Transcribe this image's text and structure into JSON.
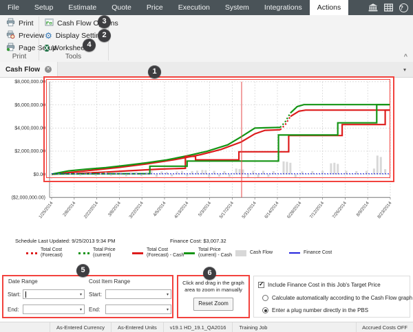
{
  "menubar": {
    "tabs": [
      {
        "label": "File",
        "active": false
      },
      {
        "label": "Setup",
        "active": false
      },
      {
        "label": "Estimate",
        "active": false
      },
      {
        "label": "Quote",
        "active": false
      },
      {
        "label": "Price",
        "active": false
      },
      {
        "label": "Execution",
        "active": false
      },
      {
        "label": "System",
        "active": false
      },
      {
        "label": "Integrations",
        "active": false
      },
      {
        "label": "Actions",
        "active": true
      }
    ],
    "right_icons": [
      "bank-icon",
      "grid-icon",
      "help-icon"
    ]
  },
  "ribbon": {
    "groups": [
      {
        "label": "Print",
        "items": [
          {
            "label": "Print",
            "icon": "printer-icon"
          },
          {
            "label": "Preview",
            "icon": "print-preview-icon"
          },
          {
            "label": "Page Setup",
            "icon": "page-setup-icon"
          }
        ]
      },
      {
        "label": "Tools",
        "items": [
          {
            "label": "Cash Flow Options",
            "icon": "cash-flow-options-icon",
            "callout": "3"
          },
          {
            "label": "Display Settings",
            "icon": "gear-icon",
            "callout": "2"
          },
          {
            "label": "Worksheet",
            "icon": "excel-icon",
            "callout": "4"
          }
        ]
      }
    ],
    "collapse_icon": "chevron-up-icon"
  },
  "view_tab": {
    "label": "Cash Flow"
  },
  "callouts": {
    "c1": "1",
    "c2": "2",
    "c3": "3",
    "c4": "4",
    "c5": "5",
    "c6": "6"
  },
  "info": {
    "schedule_last_updated": "Schedule Last Updated: 9/25/2013 9:34 PM",
    "finance_cost": "Finance Cost: $3,007.32"
  },
  "chart_data": {
    "type": "combo",
    "title": "Cash Flow",
    "y_unit": "millions USD",
    "ylim": [
      -2,
      8
    ],
    "grid": true,
    "y_ticks": [
      {
        "label": "$8,000,000.00",
        "value": 8
      },
      {
        "label": "$6,000,000.00",
        "value": 6
      },
      {
        "label": "$4,000,000.00",
        "value": 4
      },
      {
        "label": "$2,000,000.00",
        "value": 2
      },
      {
        "label": "$0.00",
        "value": 0
      },
      {
        "label": "($2,000,000.00)",
        "value": -2
      }
    ],
    "x_ticks": [
      "1/25/2014",
      "2/8/2014",
      "2/22/2014",
      "3/8/2014",
      "3/22/2014",
      "4/5/2014",
      "4/19/2014",
      "5/3/2014",
      "5/17/2014",
      "5/31/2014",
      "6/14/2014",
      "6/28/2014",
      "7/12/2014",
      "7/26/2014",
      "8/9/2014",
      "8/23/2014"
    ],
    "crosshair_x": 0.561,
    "series": [
      {
        "name": "Total Cost (Forecast)",
        "type": "line",
        "color": "#dd1c1c",
        "width": 2.2,
        "segments": [
          {
            "style": "solid",
            "points": [
              [
                0,
                0
              ],
              [
                0.06,
                0.18
              ],
              [
                0.12,
                0.36
              ],
              [
                0.2,
                0.6
              ],
              [
                0.28,
                0.9
              ],
              [
                0.36,
                1.25
              ],
              [
                0.44,
                1.7
              ],
              [
                0.5,
                2.15
              ],
              [
                0.56,
                2.8
              ],
              [
                0.6,
                3.5
              ],
              [
                0.63,
                3.8
              ],
              [
                0.675,
                3.85
              ]
            ]
          },
          {
            "style": "dotted",
            "points": [
              [
                0.675,
                3.85
              ],
              [
                0.69,
                4.3
              ],
              [
                0.705,
                5.0
              ]
            ]
          },
          {
            "style": "solid",
            "points": [
              [
                0.705,
                5.0
              ],
              [
                0.73,
                5.45
              ],
              [
                0.75,
                5.55
              ],
              [
                1,
                5.55
              ]
            ]
          }
        ]
      },
      {
        "name": "Total Price (current)",
        "type": "line",
        "color": "#149414",
        "width": 2.2,
        "segments": [
          {
            "style": "solid",
            "points": [
              [
                0,
                0.02
              ],
              [
                0.05,
                0.3
              ],
              [
                0.1,
                0.44
              ],
              [
                0.16,
                0.58
              ],
              [
                0.22,
                0.78
              ],
              [
                0.28,
                1.0
              ],
              [
                0.34,
                1.25
              ],
              [
                0.4,
                1.6
              ],
              [
                0.46,
                2.0
              ],
              [
                0.52,
                2.55
              ],
              [
                0.56,
                3.25
              ],
              [
                0.6,
                4.0
              ],
              [
                0.675,
                4.05
              ]
            ]
          },
          {
            "style": "dotted",
            "points": [
              [
                0.675,
                4.05
              ],
              [
                0.69,
                4.55
              ],
              [
                0.705,
                5.3
              ]
            ]
          },
          {
            "style": "solid",
            "points": [
              [
                0.705,
                5.3
              ],
              [
                0.725,
                5.85
              ],
              [
                0.745,
                6.02
              ],
              [
                1,
                6.02
              ]
            ]
          }
        ]
      },
      {
        "name": "Total Cost (Forecast) - Cash",
        "type": "line",
        "color": "#dd1c1c",
        "width": 2.2,
        "segments": [
          {
            "style": "solid",
            "points": [
              [
                0,
                0.02
              ],
              [
                0.08,
                0.08
              ],
              [
                0.16,
                0.2
              ],
              [
                0.24,
                0.33
              ],
              [
                0.32,
                0.45
              ],
              [
                0.395,
                0.52
              ],
              [
                0.395,
                1.55
              ],
              [
                0.425,
                1.55
              ],
              [
                0.425,
                1.25
              ],
              [
                0.553,
                1.25
              ],
              [
                0.553,
                1.95
              ],
              [
                0.7,
                1.95
              ],
              [
                0.7,
                3.35
              ],
              [
                0.858,
                3.35
              ],
              [
                0.858,
                4.3
              ],
              [
                0.985,
                4.3
              ],
              [
                0.985,
                5.55
              ],
              [
                1,
                5.55
              ]
            ]
          }
        ]
      },
      {
        "name": "Total Price (current) - Cash",
        "type": "line",
        "color": "#149414",
        "width": 2.2,
        "segments": [
          {
            "style": "solid",
            "points": [
              [
                0,
                0.03
              ],
              [
                0.29,
                0.06
              ],
              [
                0.29,
                0.7
              ],
              [
                0.4,
                0.7
              ],
              [
                0.4,
                1.15
              ],
              [
                0.67,
                1.15
              ],
              [
                0.67,
                3.4
              ],
              [
                0.845,
                3.4
              ],
              [
                0.845,
                4.45
              ],
              [
                0.96,
                4.45
              ],
              [
                0.96,
                6.02
              ],
              [
                1,
                6.02
              ]
            ]
          }
        ]
      },
      {
        "name": "Cash Flow",
        "type": "bar",
        "color": "#d6d6d6",
        "points": [
          [
            0.02,
            0.06
          ],
          [
            0.04,
            -0.08
          ],
          [
            0.055,
            0.1
          ],
          [
            0.07,
            0.12
          ],
          [
            0.085,
            -0.12
          ],
          [
            0.1,
            0.1
          ],
          [
            0.115,
            0.14
          ],
          [
            0.13,
            -0.15
          ],
          [
            0.145,
            0.12
          ],
          [
            0.16,
            0.18
          ],
          [
            0.175,
            -0.12
          ],
          [
            0.19,
            0.15
          ],
          [
            0.205,
            0.2
          ],
          [
            0.22,
            -0.18
          ],
          [
            0.235,
            0.18
          ],
          [
            0.25,
            0.22
          ],
          [
            0.265,
            -0.15
          ],
          [
            0.28,
            0.2
          ],
          [
            0.295,
            0.3
          ],
          [
            0.31,
            -0.22
          ],
          [
            0.325,
            0.25
          ],
          [
            0.34,
            0.2
          ],
          [
            0.355,
            -0.18
          ],
          [
            0.37,
            0.25
          ],
          [
            0.385,
            0.3
          ],
          [
            0.4,
            -0.2
          ],
          [
            0.415,
            0.28
          ],
          [
            0.43,
            0.32
          ],
          [
            0.445,
            0.38
          ],
          [
            0.455,
            0.36
          ],
          [
            0.465,
            -0.25
          ],
          [
            0.48,
            0.3
          ],
          [
            0.495,
            -0.2
          ],
          [
            0.51,
            0.28
          ],
          [
            0.525,
            -0.22
          ],
          [
            0.545,
            0.5
          ],
          [
            0.555,
            0.46
          ],
          [
            0.565,
            0.42
          ],
          [
            0.58,
            -0.25
          ],
          [
            0.595,
            0.3
          ],
          [
            0.61,
            -0.28
          ],
          [
            0.625,
            0.3
          ],
          [
            0.64,
            -0.22
          ],
          [
            0.655,
            0.28
          ],
          [
            0.685,
            1.12
          ],
          [
            0.695,
            1.08
          ],
          [
            0.705,
            1.0
          ],
          [
            0.72,
            -0.25
          ],
          [
            0.74,
            0.25
          ],
          [
            0.77,
            0.28
          ],
          [
            0.8,
            0.3
          ],
          [
            0.825,
            0.95
          ],
          [
            0.835,
            1.0
          ],
          [
            0.845,
            0.9
          ],
          [
            0.87,
            0.3
          ],
          [
            0.9,
            0.28
          ],
          [
            0.93,
            0.3
          ],
          [
            0.952,
            0.5
          ],
          [
            0.962,
            1.62
          ],
          [
            0.972,
            1.5
          ],
          [
            0.985,
            0.45
          ]
        ]
      },
      {
        "name": "Finance Cost",
        "type": "line",
        "color": "#2222dd",
        "width": 1.2,
        "dash": "2 2",
        "segments": [
          {
            "style": "dashed",
            "points": [
              [
                0,
                0.05
              ],
              [
                1,
                0.05
              ]
            ]
          }
        ]
      }
    ],
    "legend_position": "bottom"
  },
  "legend": [
    {
      "line1": "Total Cost",
      "line2": "(Forecast)",
      "swatch": "dots",
      "color": "#dd1c1c"
    },
    {
      "line1": "Total Price",
      "line2": "(current)",
      "swatch": "dots",
      "color": "#149414"
    },
    {
      "line1": "Total Cost",
      "line2": "(Forecast) - Cash",
      "swatch": "line",
      "color": "#dd1c1c"
    },
    {
      "line1": "Total Price",
      "line2": "(current) - Cash",
      "swatch": "line",
      "color": "#149414"
    },
    {
      "line1": "Cash Flow",
      "line2": "",
      "swatch": "box",
      "color": "#d8d8d8"
    },
    {
      "line1": "Finance Cost",
      "line2": "",
      "swatch": "thin",
      "color": "#2222dd"
    }
  ],
  "controls": {
    "date_range": {
      "title": "Date Range",
      "start_label": "Start:",
      "end_label": "End:",
      "start_value": "",
      "end_value": ""
    },
    "cost_item_range": {
      "title": "Cost Item Range",
      "start_label": "Start:",
      "end_label": "End:",
      "start_value": "",
      "end_value": ""
    },
    "zoom_panel": {
      "line1": "Click and drag in the graph",
      "line2": "area to zoom in manually",
      "button": "Reset Zoom"
    },
    "finance_options": {
      "checkbox": {
        "label": "Include Finance Cost in this Job's Target Price",
        "checked": true
      },
      "radios": [
        {
          "label": "Calculate automatically according to the Cash Flow graph",
          "selected": false
        },
        {
          "label": "Enter a plug number directly in the PBS",
          "selected": true
        }
      ]
    }
  },
  "statusbar": {
    "items": [
      "As-Entered Currency",
      "As-Entered Units",
      "v19.1 HD_19.1_QA2016",
      "Training Job"
    ],
    "right": "Accrued Costs OFF"
  }
}
